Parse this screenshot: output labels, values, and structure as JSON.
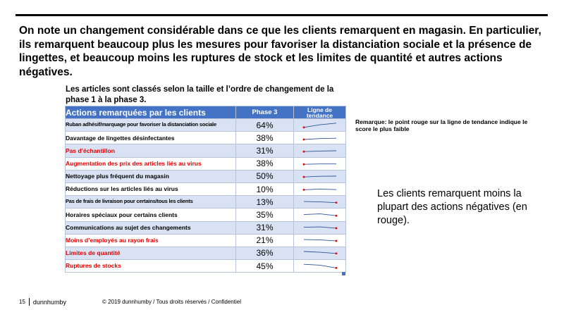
{
  "headline": "On note un changement considérable dans ce que les clients remarquent en magasin. En particulier, ils remarquent beaucoup plus les mesures pour favoriser la distanciation sociale et la présence de lingettes, et beaucoup moins les ruptures de stock et les limites de quantité et autres actions négatives.",
  "caption": "Les articles sont classés selon la taille et l’ordre de changement de la phase 1 à la phase 3.",
  "table": {
    "headers": {
      "action": "Actions remarquées par les clients",
      "phase": "Phase 3",
      "trend": "Ligne de tendance"
    },
    "rows": [
      {
        "label": "Ruban adhésif/marquage pour favoriser la distanciation sociale",
        "value": "64%",
        "negative": false,
        "trend": [
          0.15,
          0.62,
          0.9
        ]
      },
      {
        "label": "Davantage de lingettes désinfectantes",
        "value": "38%",
        "negative": false,
        "trend": [
          0.25,
          0.42,
          0.48
        ]
      },
      {
        "label": "Pas d’échantillon",
        "value": "31%",
        "negative": true,
        "trend": [
          0.35,
          0.44,
          0.5
        ]
      },
      {
        "label": "Augmentation des prix des articles liés au virus",
        "value": "38%",
        "negative": true,
        "trend": [
          0.35,
          0.42,
          0.42
        ]
      },
      {
        "label": "Nettoyage plus fréquent du magasin",
        "value": "50%",
        "negative": false,
        "trend": [
          0.35,
          0.48,
          0.5
        ]
      },
      {
        "label": "Réductions sur les articles liés au virus",
        "value": "10%",
        "negative": false,
        "trend": [
          0.45,
          0.58,
          0.48
        ]
      },
      {
        "label": "Pas de frais de livraison pour certains/tous les clients",
        "value": "13%",
        "negative": false,
        "trend": [
          0.62,
          0.55,
          0.42
        ]
      },
      {
        "label": "Horaires spéciaux pour certains clients",
        "value": "35%",
        "negative": false,
        "trend": [
          0.55,
          0.68,
          0.35
        ]
      },
      {
        "label": "Communications au sujet des changements",
        "value": "31%",
        "negative": false,
        "trend": [
          0.55,
          0.62,
          0.38
        ]
      },
      {
        "label": "Moins d’employés au rayon frais",
        "value": "21%",
        "negative": true,
        "trend": [
          0.62,
          0.55,
          0.38
        ]
      },
      {
        "label": "Limites de quantité",
        "value": "36%",
        "negative": true,
        "trend": [
          0.75,
          0.62,
          0.4
        ]
      },
      {
        "label": "Ruptures de stocks",
        "value": "45%",
        "negative": true,
        "trend": [
          0.85,
          0.7,
          0.2
        ]
      }
    ]
  },
  "remark": "Remarque: le point rouge sur la ligne de tendance indique le score le plus faible",
  "side_note": "Les clients remarquent moins la plupart des actions négatives (en rouge).",
  "footer": {
    "page": "15",
    "brand": "dunnhumby",
    "copyright": "© 2019 dunnhumby / Tous droits réservés / Confidentiel"
  },
  "colors": {
    "header_bg": "#4472c4",
    "row_alt": "#d9e2f3",
    "negative_text": "#e60000",
    "sparkline": "#2f5597",
    "low_marker": "#e60000"
  }
}
